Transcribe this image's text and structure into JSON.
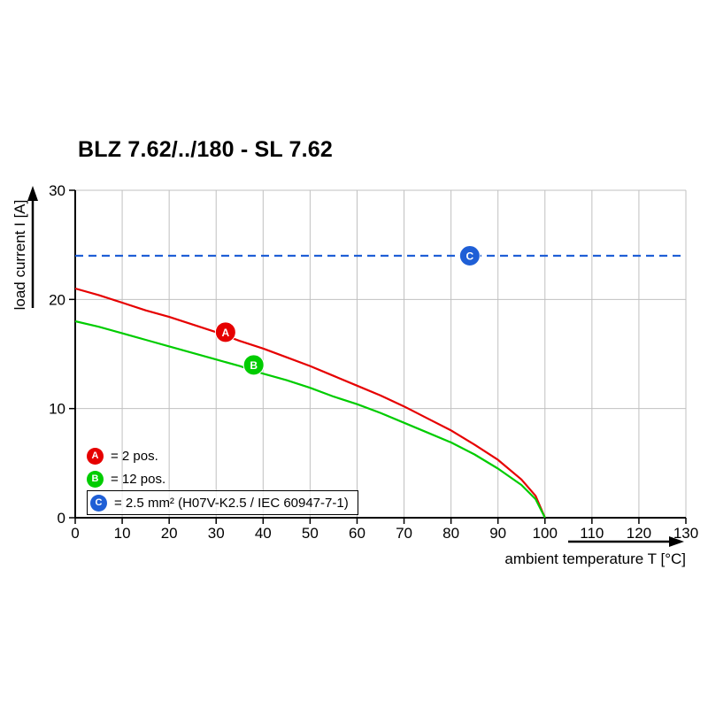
{
  "title": "BLZ 7.62/../180 - SL 7.62",
  "y_axis_label": "load current I [A]",
  "x_axis_label": "ambient temperature T [°C]",
  "legend": [
    {
      "marker": "A",
      "color": "#e60000",
      "label": "= 2 pos.",
      "boxed": false
    },
    {
      "marker": "B",
      "color": "#00cc00",
      "label": "= 12 pos.",
      "boxed": false
    },
    {
      "marker": "C",
      "color": "#1f5fd6",
      "label": "= 2.5 mm² (H07V-K2.5 / IEC 60947-7-1)",
      "boxed": true
    }
  ],
  "chart_data": {
    "type": "line",
    "title": "BLZ 7.62/../180 - SL 7.62",
    "xlabel": "ambient temperature T [°C]",
    "ylabel": "load current I [A]",
    "xlim": [
      0,
      130
    ],
    "ylim": [
      0,
      30
    ],
    "x_ticks": [
      0,
      10,
      20,
      30,
      40,
      50,
      60,
      70,
      80,
      90,
      100,
      110,
      120,
      130
    ],
    "y_ticks": [
      0,
      10,
      20,
      30
    ],
    "grid": true,
    "grid_color": "#c0c0c0",
    "legend_position": "lower-left",
    "series": [
      {
        "name": "A",
        "label": "2 pos.",
        "color": "#e60000",
        "style": "solid",
        "marker_at": [
          32,
          17
        ],
        "points": [
          [
            0,
            21
          ],
          [
            5,
            20.4
          ],
          [
            10,
            19.7
          ],
          [
            15,
            19.0
          ],
          [
            20,
            18.4
          ],
          [
            25,
            17.7
          ],
          [
            30,
            17.0
          ],
          [
            35,
            16.2
          ],
          [
            40,
            15.5
          ],
          [
            45,
            14.7
          ],
          [
            50,
            13.9
          ],
          [
            55,
            13.0
          ],
          [
            60,
            12.1
          ],
          [
            65,
            11.2
          ],
          [
            70,
            10.2
          ],
          [
            75,
            9.1
          ],
          [
            80,
            8.0
          ],
          [
            85,
            6.7
          ],
          [
            90,
            5.3
          ],
          [
            95,
            3.5
          ],
          [
            98,
            2.0
          ],
          [
            100,
            0
          ]
        ]
      },
      {
        "name": "B",
        "label": "12 pos.",
        "color": "#00cc00",
        "style": "solid",
        "marker_at": [
          38,
          14
        ],
        "points": [
          [
            0,
            18
          ],
          [
            5,
            17.5
          ],
          [
            10,
            16.9
          ],
          [
            15,
            16.3
          ],
          [
            20,
            15.7
          ],
          [
            25,
            15.1
          ],
          [
            30,
            14.5
          ],
          [
            35,
            13.9
          ],
          [
            40,
            13.2
          ],
          [
            45,
            12.6
          ],
          [
            50,
            11.9
          ],
          [
            55,
            11.1
          ],
          [
            60,
            10.4
          ],
          [
            65,
            9.6
          ],
          [
            70,
            8.7
          ],
          [
            75,
            7.8
          ],
          [
            80,
            6.9
          ],
          [
            85,
            5.8
          ],
          [
            90,
            4.5
          ],
          [
            95,
            3.0
          ],
          [
            98,
            1.7
          ],
          [
            100,
            0
          ]
        ]
      },
      {
        "name": "C",
        "label": "2.5 mm² (H07V-K2.5 / IEC 60947-7-1)",
        "color": "#1f5fd6",
        "style": "dashed",
        "marker_at": [
          84,
          24
        ],
        "points": [
          [
            0,
            24
          ],
          [
            130,
            24
          ]
        ]
      }
    ]
  }
}
